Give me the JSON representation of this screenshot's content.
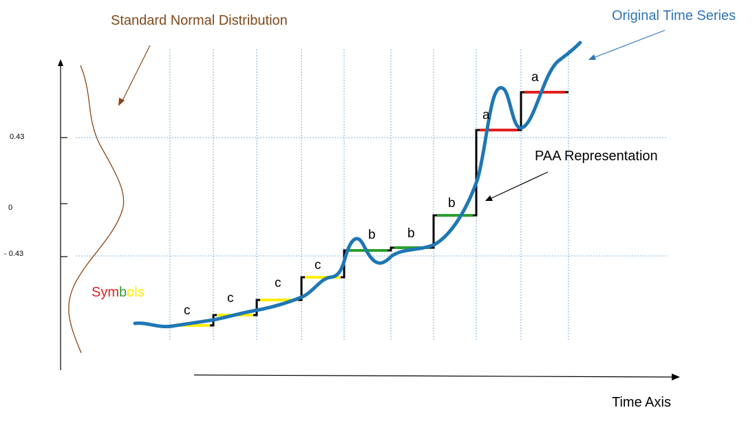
{
  "labels": {
    "normal_distribution": "Standard Normal Distribution",
    "original_series": "Original Time Series",
    "paa": "PAA Representation",
    "time_axis": "Time Axis",
    "symbols_word": {
      "part1": "Sym",
      "part2": "b",
      "part3": "ols"
    }
  },
  "breakpoints": [
    {
      "label": "0.43",
      "value": 0.43
    },
    {
      "label": "0",
      "value": 0
    },
    {
      "label": "- 0.43",
      "value": -0.43
    }
  ],
  "segments": [
    {
      "symbol": "c"
    },
    {
      "symbol": "c"
    },
    {
      "symbol": "c"
    },
    {
      "symbol": "c"
    },
    {
      "symbol": "b"
    },
    {
      "symbol": "b"
    },
    {
      "symbol": "b"
    },
    {
      "symbol": "a"
    },
    {
      "symbol": "a"
    }
  ],
  "colors": {
    "series": "#1f77b4",
    "distribution": "#8b4513",
    "title_brown": "#7f4a1a",
    "title_blue": "#2e75b6",
    "grid": "#5b9bd5",
    "symbol_a": "#e02020",
    "symbol_b": "#2ca02c",
    "symbol_c": "#ffee00"
  }
}
